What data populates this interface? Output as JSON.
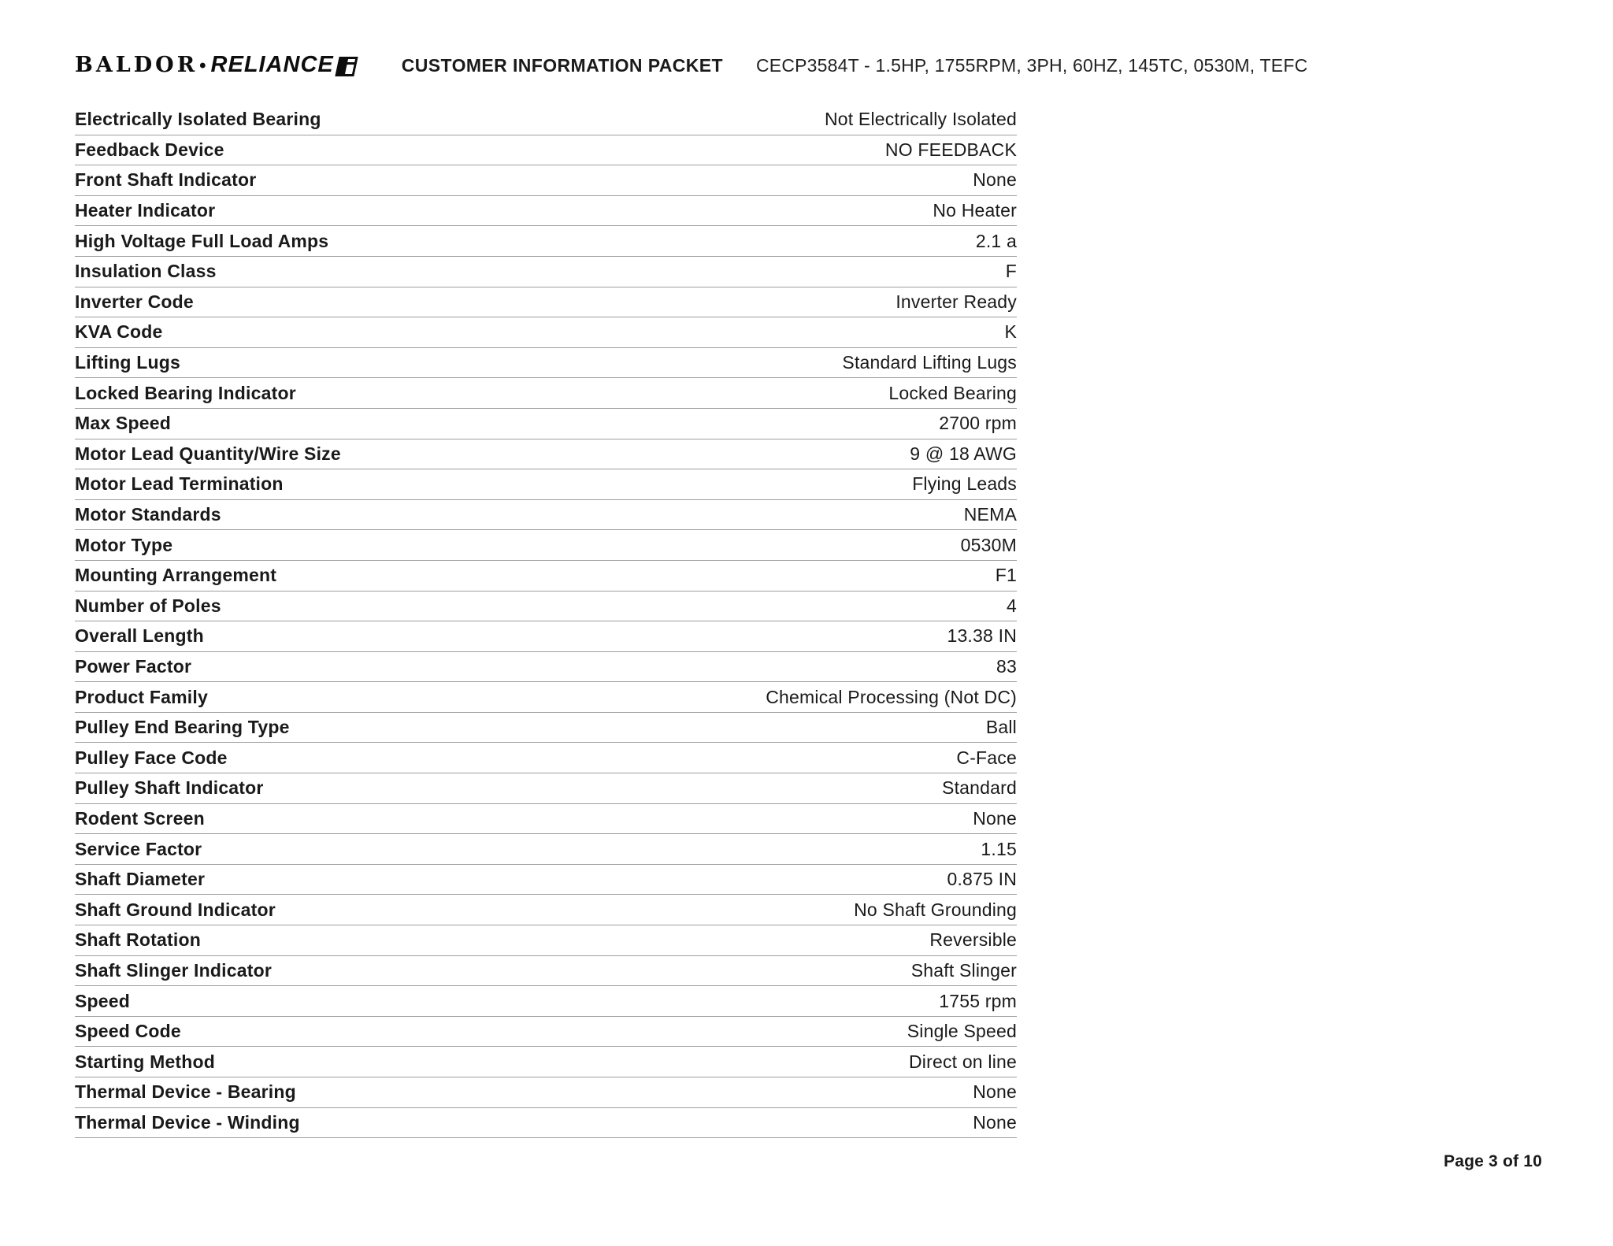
{
  "header": {
    "logo": {
      "baldor": "BALDOR",
      "separator": "•",
      "reliance": "RELIANCE"
    },
    "doc_title": "CUSTOMER INFORMATION PACKET",
    "product_line": "CECP3584T - 1.5HP, 1755RPM, 3PH, 60HZ, 145TC, 0530M, TEFC"
  },
  "spec_table": {
    "rows": [
      {
        "label": "Electrically Isolated Bearing",
        "value": "Not Electrically Isolated"
      },
      {
        "label": "Feedback Device",
        "value": "NO FEEDBACK"
      },
      {
        "label": "Front Shaft Indicator",
        "value": "None"
      },
      {
        "label": "Heater Indicator",
        "value": "No Heater"
      },
      {
        "label": "High Voltage Full Load Amps",
        "value": "2.1 a"
      },
      {
        "label": "Insulation Class",
        "value": "F"
      },
      {
        "label": "Inverter Code",
        "value": "Inverter Ready"
      },
      {
        "label": "KVA Code",
        "value": "K"
      },
      {
        "label": "Lifting Lugs",
        "value": "Standard Lifting Lugs"
      },
      {
        "label": "Locked Bearing Indicator",
        "value": "Locked Bearing"
      },
      {
        "label": "Max Speed",
        "value": "2700 rpm"
      },
      {
        "label": "Motor Lead Quantity/Wire Size",
        "value": "9 @ 18 AWG"
      },
      {
        "label": "Motor Lead Termination",
        "value": "Flying Leads"
      },
      {
        "label": "Motor Standards",
        "value": "NEMA"
      },
      {
        "label": "Motor Type",
        "value": "0530M"
      },
      {
        "label": "Mounting Arrangement",
        "value": "F1"
      },
      {
        "label": "Number of Poles",
        "value": "4"
      },
      {
        "label": "Overall Length",
        "value": "13.38 IN"
      },
      {
        "label": "Power Factor",
        "value": "83"
      },
      {
        "label": "Product Family",
        "value": "Chemical Processing (Not DC)"
      },
      {
        "label": "Pulley End Bearing Type",
        "value": "Ball"
      },
      {
        "label": "Pulley Face Code",
        "value": "C-Face"
      },
      {
        "label": "Pulley Shaft Indicator",
        "value": "Standard"
      },
      {
        "label": "Rodent Screen",
        "value": "None"
      },
      {
        "label": "Service Factor",
        "value": "1.15"
      },
      {
        "label": "Shaft Diameter",
        "value": "0.875 IN"
      },
      {
        "label": "Shaft Ground Indicator",
        "value": "No Shaft Grounding"
      },
      {
        "label": "Shaft Rotation",
        "value": "Reversible"
      },
      {
        "label": "Shaft Slinger Indicator",
        "value": "Shaft Slinger"
      },
      {
        "label": "Speed",
        "value": "1755 rpm"
      },
      {
        "label": "Speed Code",
        "value": "Single Speed"
      },
      {
        "label": "Starting Method",
        "value": "Direct on line"
      },
      {
        "label": "Thermal Device - Bearing",
        "value": "None"
      },
      {
        "label": "Thermal Device - Winding",
        "value": "None"
      }
    ]
  },
  "footer": {
    "page_label": "Page 3 of 10"
  },
  "colors": {
    "text": "#1a1a1a",
    "divider": "#9e9e9e",
    "background": "#ffffff"
  }
}
